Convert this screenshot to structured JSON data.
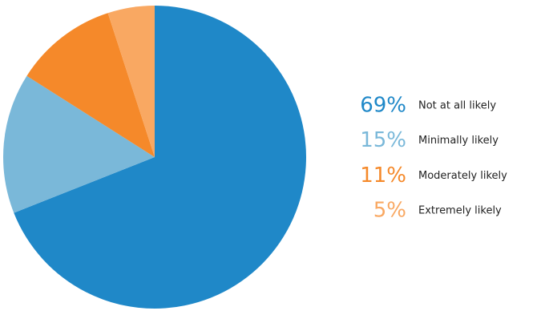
{
  "chart_data": {
    "type": "pie",
    "categories": [
      "Not at all likely",
      "Minimally likely",
      "Moderately likely",
      "Extremely likely"
    ],
    "values": [
      69,
      15,
      11,
      5
    ],
    "value_labels": [
      "69%",
      "15%",
      "11%",
      "5%"
    ],
    "colors": [
      "#1f88c8",
      "#7ab8d9",
      "#f5892a",
      "#f9a862"
    ]
  }
}
